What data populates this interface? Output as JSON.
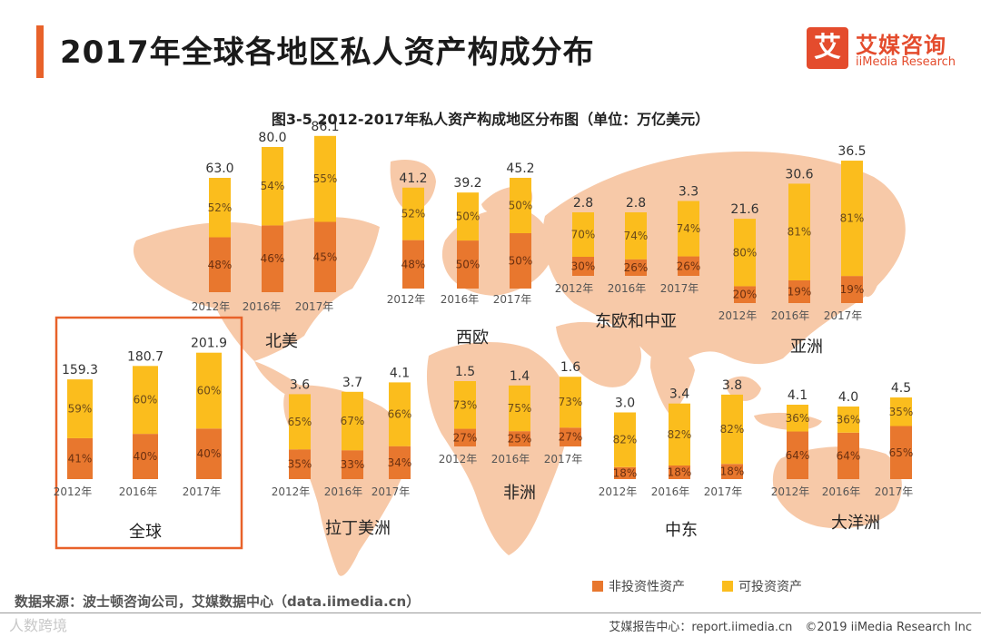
{
  "header": {
    "title": "2017年全球各地区私人资产构成分布",
    "logo_glyph": "艾",
    "logo_name": "艾媒咨询",
    "logo_en": "iiMedia Research"
  },
  "colors": {
    "accent": "#e8622a",
    "non_investable": "#e8772e",
    "investable": "#fbbd1d",
    "map": "#f7c9a8"
  },
  "chart_data": {
    "type": "bar",
    "stacked": true,
    "title": "图3-5 2012-2017年私人资产构成地区分布图（单位：万亿美元）",
    "categories": [
      "2012年",
      "2016年",
      "2017年"
    ],
    "legend": [
      "非投资性资产",
      "可投资资产"
    ],
    "legend_position": "bottom-right",
    "regions": [
      {
        "name": "北美",
        "totals": [
          "63.0",
          "80.0",
          "86.1"
        ],
        "non_investable": [
          48,
          46,
          45
        ],
        "investable": [
          52,
          54,
          55
        ]
      },
      {
        "name": "西欧",
        "totals": [
          "41.2",
          "39.2",
          "45.2"
        ],
        "non_investable": [
          48,
          50,
          50
        ],
        "investable": [
          52,
          50,
          50
        ]
      },
      {
        "name": "东欧和中亚",
        "totals": [
          "2.8",
          "2.8",
          "3.3"
        ],
        "non_investable": [
          30,
          26,
          26
        ],
        "investable": [
          70,
          74,
          74
        ]
      },
      {
        "name": "亚洲",
        "totals": [
          "21.6",
          "30.6",
          "36.5"
        ],
        "non_investable": [
          20,
          19,
          19
        ],
        "investable": [
          80,
          81,
          81
        ]
      },
      {
        "name": "全球",
        "totals": [
          "159.3",
          "180.7",
          "201.9"
        ],
        "non_investable": [
          41,
          40,
          40
        ],
        "investable": [
          59,
          60,
          60
        ]
      },
      {
        "name": "拉丁美洲",
        "totals": [
          "3.6",
          "3.7",
          "4.1"
        ],
        "non_investable": [
          35,
          33,
          34
        ],
        "investable": [
          65,
          67,
          66
        ]
      },
      {
        "name": "非洲",
        "totals": [
          "1.5",
          "1.4",
          "1.6"
        ],
        "non_investable": [
          27,
          25,
          27
        ],
        "investable": [
          73,
          75,
          73
        ]
      },
      {
        "name": "中东",
        "totals": [
          "3.0",
          "3.4",
          "3.8"
        ],
        "non_investable": [
          18,
          18,
          18
        ],
        "investable": [
          82,
          82,
          82
        ]
      },
      {
        "name": "大洋洲",
        "totals": [
          "4.1",
          "4.0",
          "4.5"
        ],
        "non_investable": [
          64,
          64,
          65
        ],
        "investable": [
          36,
          36,
          35
        ]
      }
    ]
  },
  "footer": {
    "source": "数据来源：波士顿咨询公司，艾媒数据中心（data.iimedia.cn）",
    "watermark": "人数跨境",
    "report_center": "艾媒报告中心：report.iimedia.cn",
    "copyright": "©2019  iiMedia Research  Inc"
  }
}
